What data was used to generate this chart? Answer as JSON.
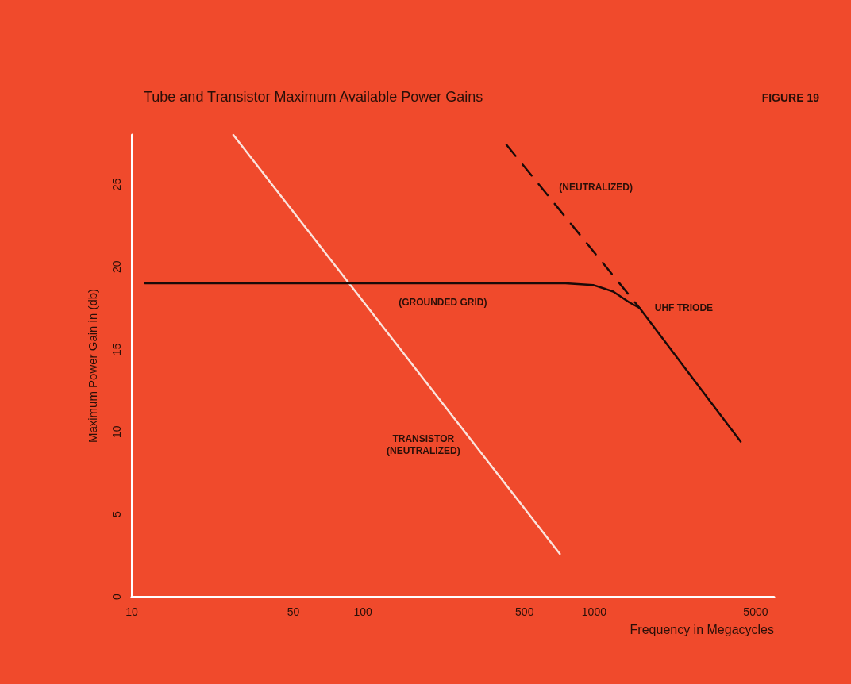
{
  "chart_data": {
    "type": "line",
    "title": "Tube and Transistor Maximum Available Power Gains",
    "xlabel": "Frequency in Megacycles",
    "ylabel": "Maximum Power Gain in (db)",
    "log": "x",
    "xlim": [
      10,
      6000
    ],
    "xticks": [
      10,
      50,
      100,
      500,
      1000,
      5000
    ],
    "ylim": [
      0,
      28
    ],
    "yticks": [
      0,
      5,
      10,
      15,
      20,
      25
    ],
    "grid": false,
    "marker": "none",
    "series": [
      {
        "name": "TRANSISTOR\n(NEUTRALIZED)",
        "color": "#fbe3dc",
        "x": [
          27.5,
          711
        ],
        "values": [
          28,
          2.6
        ]
      },
      {
        "name": "UHF TRIODE",
        "color": "#1a0a08",
        "x": [
          11.4,
          752,
          990,
          1210,
          1419,
          1574,
          4305
        ],
        "values": [
          19,
          19,
          18.9,
          18.5,
          17.85,
          17.5,
          9.4
        ]
      },
      {
        "name": "(NEUTRALIZED)",
        "color": "#1a0a08",
        "line_style": "dashed",
        "x": [
          418,
          1574
        ],
        "values": [
          27.4,
          17.5
        ]
      }
    ],
    "annotations": [
      "(GROUNDED GRID)",
      "FIGURE 19"
    ]
  }
}
